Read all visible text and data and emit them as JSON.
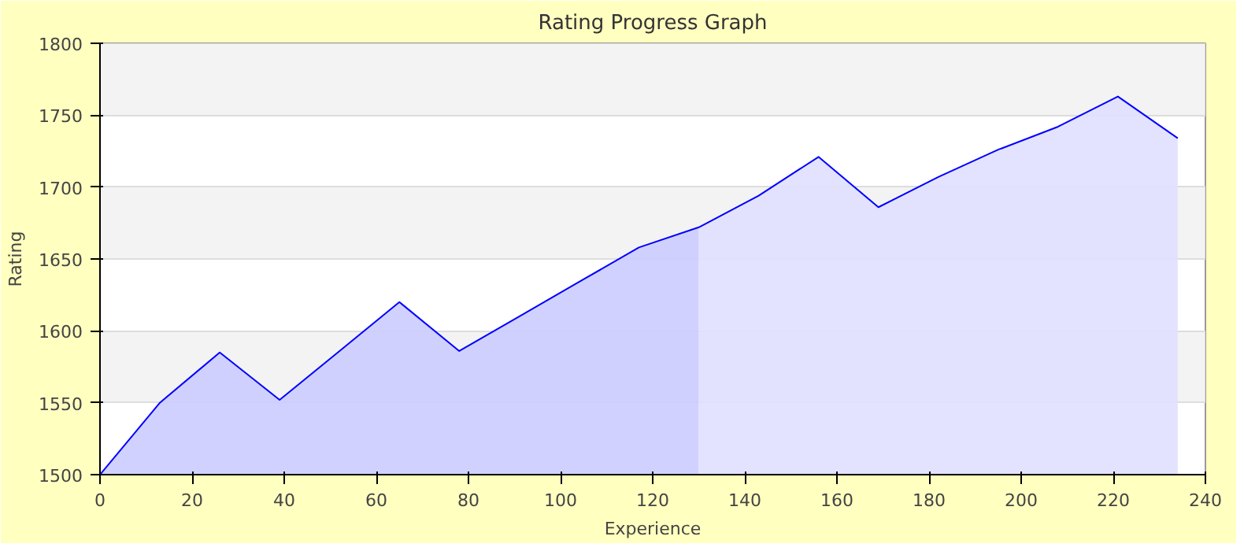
{
  "chart_data": {
    "type": "area",
    "title": "Rating Progress Graph",
    "xlabel": "Experience",
    "ylabel": "Rating",
    "xlim": [
      0,
      240
    ],
    "ylim": [
      1500,
      1800
    ],
    "xticks": [
      0,
      20,
      40,
      60,
      80,
      100,
      120,
      140,
      160,
      180,
      200,
      220,
      240
    ],
    "yticks": [
      1500,
      1550,
      1600,
      1650,
      1700,
      1750,
      1800
    ],
    "grid": "y",
    "series": [
      {
        "color": "#ccccff",
        "x": [
          0,
          13,
          26,
          39,
          52,
          65,
          78,
          91,
          104,
          117,
          130
        ],
        "values": [
          1500,
          1550,
          1585,
          1552,
          1586,
          1620,
          1586,
          1610,
          1634,
          1658,
          1672
        ]
      },
      {
        "color": "#e0e0ff",
        "x": [
          130,
          143,
          156,
          169,
          182,
          195,
          208,
          221,
          234
        ],
        "values": [
          1672,
          1694,
          1721,
          1686,
          1707,
          1726,
          1742,
          1763,
          1734
        ]
      },
      {
        "type": "line",
        "color": "#0000ff",
        "x": [
          0,
          13,
          26,
          39,
          52,
          65,
          78,
          91,
          104,
          117,
          130,
          143,
          156,
          169,
          182,
          195,
          208,
          221,
          234
        ],
        "values": [
          1500,
          1550,
          1585,
          1552,
          1586,
          1620,
          1586,
          1610,
          1634,
          1658,
          1672,
          1694,
          1721,
          1686,
          1707,
          1726,
          1742,
          1763,
          1734
        ]
      }
    ]
  }
}
